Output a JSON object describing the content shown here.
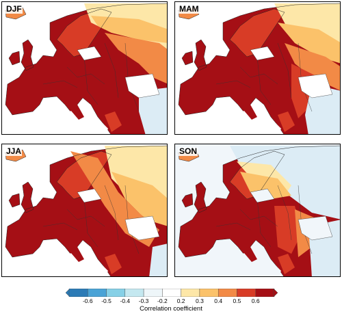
{
  "panels": [
    {
      "label": "DJF",
      "sea_tint": "#ffffff"
    },
    {
      "label": "MAM",
      "sea_tint": "#ffffff"
    },
    {
      "label": "JJA",
      "sea_tint": "#ffffff"
    },
    {
      "label": "SON",
      "sea_tint": "#f1f6fa"
    }
  ],
  "colorbar": {
    "title": "Correlation coefficient",
    "ticks": [
      "-0.6",
      "-0.5",
      "-0.4",
      "-0.3",
      "-0.2",
      "0.2",
      "0.3",
      "0.4",
      "0.5",
      "0.6"
    ],
    "bins": [
      "#2c7bb6",
      "#4aa3d6",
      "#86d0e6",
      "#c4e8f0",
      "#eef6f9",
      "#ffffff",
      "#fde7a8",
      "#fbc26a",
      "#f28a46",
      "#d83c26",
      "#a50f15"
    ]
  },
  "colors": {
    "very_high": "#a50f15",
    "high": "#d83c26",
    "mid": "#f28a46",
    "low": "#fbc26a",
    "faint": "#fde7a8",
    "negative": "#dcecf5"
  }
}
